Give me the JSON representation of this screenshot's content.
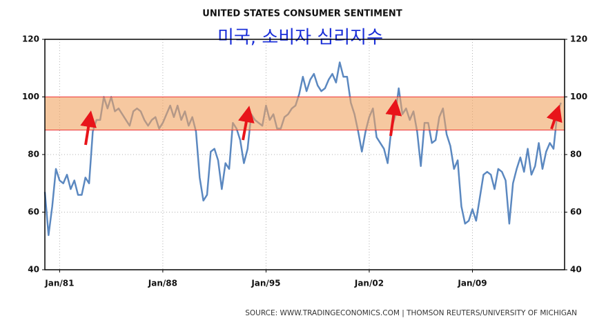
{
  "chart_data": {
    "type": "line",
    "title": "UNITED STATES CONSUMER SENTIMENT",
    "subtitle": "미국, 소비자 심리지수",
    "source": "SOURCE:  WWW.TRADINGECONOMICS.COM  |  THOMSON REUTERS/UNIVERSITY OF MICHIGAN",
    "x": [
      1980,
      1980.25,
      1980.5,
      1980.75,
      1981,
      1981.25,
      1981.5,
      1981.75,
      1982,
      1982.25,
      1982.5,
      1982.75,
      1983,
      1983.25,
      1983.5,
      1983.75,
      1984,
      1984.25,
      1984.5,
      1984.75,
      1985,
      1985.25,
      1985.5,
      1985.75,
      1986,
      1986.25,
      1986.5,
      1986.75,
      1987,
      1987.25,
      1987.5,
      1987.75,
      1988,
      1988.25,
      1988.5,
      1988.75,
      1989,
      1989.25,
      1989.5,
      1989.75,
      1990,
      1990.25,
      1990.5,
      1990.75,
      1991,
      1991.25,
      1991.5,
      1991.75,
      1992,
      1992.25,
      1992.5,
      1992.75,
      1993,
      1993.25,
      1993.5,
      1993.75,
      1994,
      1994.25,
      1994.5,
      1994.75,
      1995,
      1995.25,
      1995.5,
      1995.75,
      1996,
      1996.25,
      1996.5,
      1996.75,
      1997,
      1997.25,
      1997.5,
      1997.75,
      1998,
      1998.25,
      1998.5,
      1998.75,
      1999,
      1999.25,
      1999.5,
      1999.75,
      2000,
      2000.25,
      2000.5,
      2000.75,
      2001,
      2001.25,
      2001.5,
      2001.75,
      2002,
      2002.25,
      2002.5,
      2002.75,
      2003,
      2003.25,
      2003.5,
      2003.75,
      2004,
      2004.25,
      2004.5,
      2004.75,
      2005,
      2005.25,
      2005.5,
      2005.75,
      2006,
      2006.25,
      2006.5,
      2006.75,
      2007,
      2007.25,
      2007.5,
      2007.75,
      2008,
      2008.25,
      2008.5,
      2008.75,
      2009,
      2009.25,
      2009.5,
      2009.75,
      2010,
      2010.25,
      2010.5,
      2010.75,
      2011,
      2011.25,
      2011.5,
      2011.75,
      2012,
      2012.25,
      2012.5,
      2012.75,
      2013,
      2013.25,
      2013.5,
      2013.75,
      2014,
      2014.25,
      2014.5,
      2014.75,
      2015
    ],
    "series": [
      {
        "color": "#5b88c0",
        "values": [
          67,
          52,
          62,
          75,
          71,
          70,
          73,
          68,
          71,
          66,
          66,
          72,
          70,
          88,
          92,
          92,
          100,
          96,
          100,
          95,
          96,
          94,
          92,
          90,
          95,
          96,
          95,
          92,
          90,
          92,
          93,
          89,
          91,
          94,
          97,
          93,
          97,
          92,
          95,
          90,
          93,
          88,
          72,
          64,
          66,
          81,
          82,
          78,
          68,
          77,
          75,
          91,
          89,
          85,
          77,
          82,
          94,
          92,
          91,
          90,
          97,
          92,
          94,
          89,
          89,
          93,
          94,
          96,
          97,
          101,
          107,
          102,
          106,
          108,
          104,
          102,
          103,
          106,
          108,
          105,
          112,
          107,
          107,
          98,
          94,
          88,
          81,
          88,
          93,
          96,
          86,
          84,
          82,
          77,
          89,
          93,
          103,
          94,
          96,
          92,
          95,
          88,
          76,
          91,
          91,
          84,
          85,
          93,
          96,
          87,
          83,
          75,
          78,
          62,
          56,
          57,
          61,
          57,
          65,
          73,
          74,
          73,
          68,
          75,
          74,
          71,
          56,
          70,
          75,
          79,
          74,
          82,
          73,
          76,
          84,
          75,
          81,
          84,
          82,
          94,
          98
        ]
      }
    ],
    "xlim": [
      1980,
      2015.25
    ],
    "xticks": [
      {
        "value": 1981,
        "label": "Jan/81"
      },
      {
        "value": 1988,
        "label": "Jan/88"
      },
      {
        "value": 1995,
        "label": "Jan/95"
      },
      {
        "value": 2002,
        "label": "Jan/02"
      },
      {
        "value": 2009,
        "label": "Jan/09"
      }
    ],
    "ylim": [
      40,
      120
    ],
    "yticks": [
      40,
      60,
      80,
      100,
      120
    ],
    "band": [
      88.5,
      100
    ],
    "band_color": "#f0a460",
    "grid": true
  }
}
